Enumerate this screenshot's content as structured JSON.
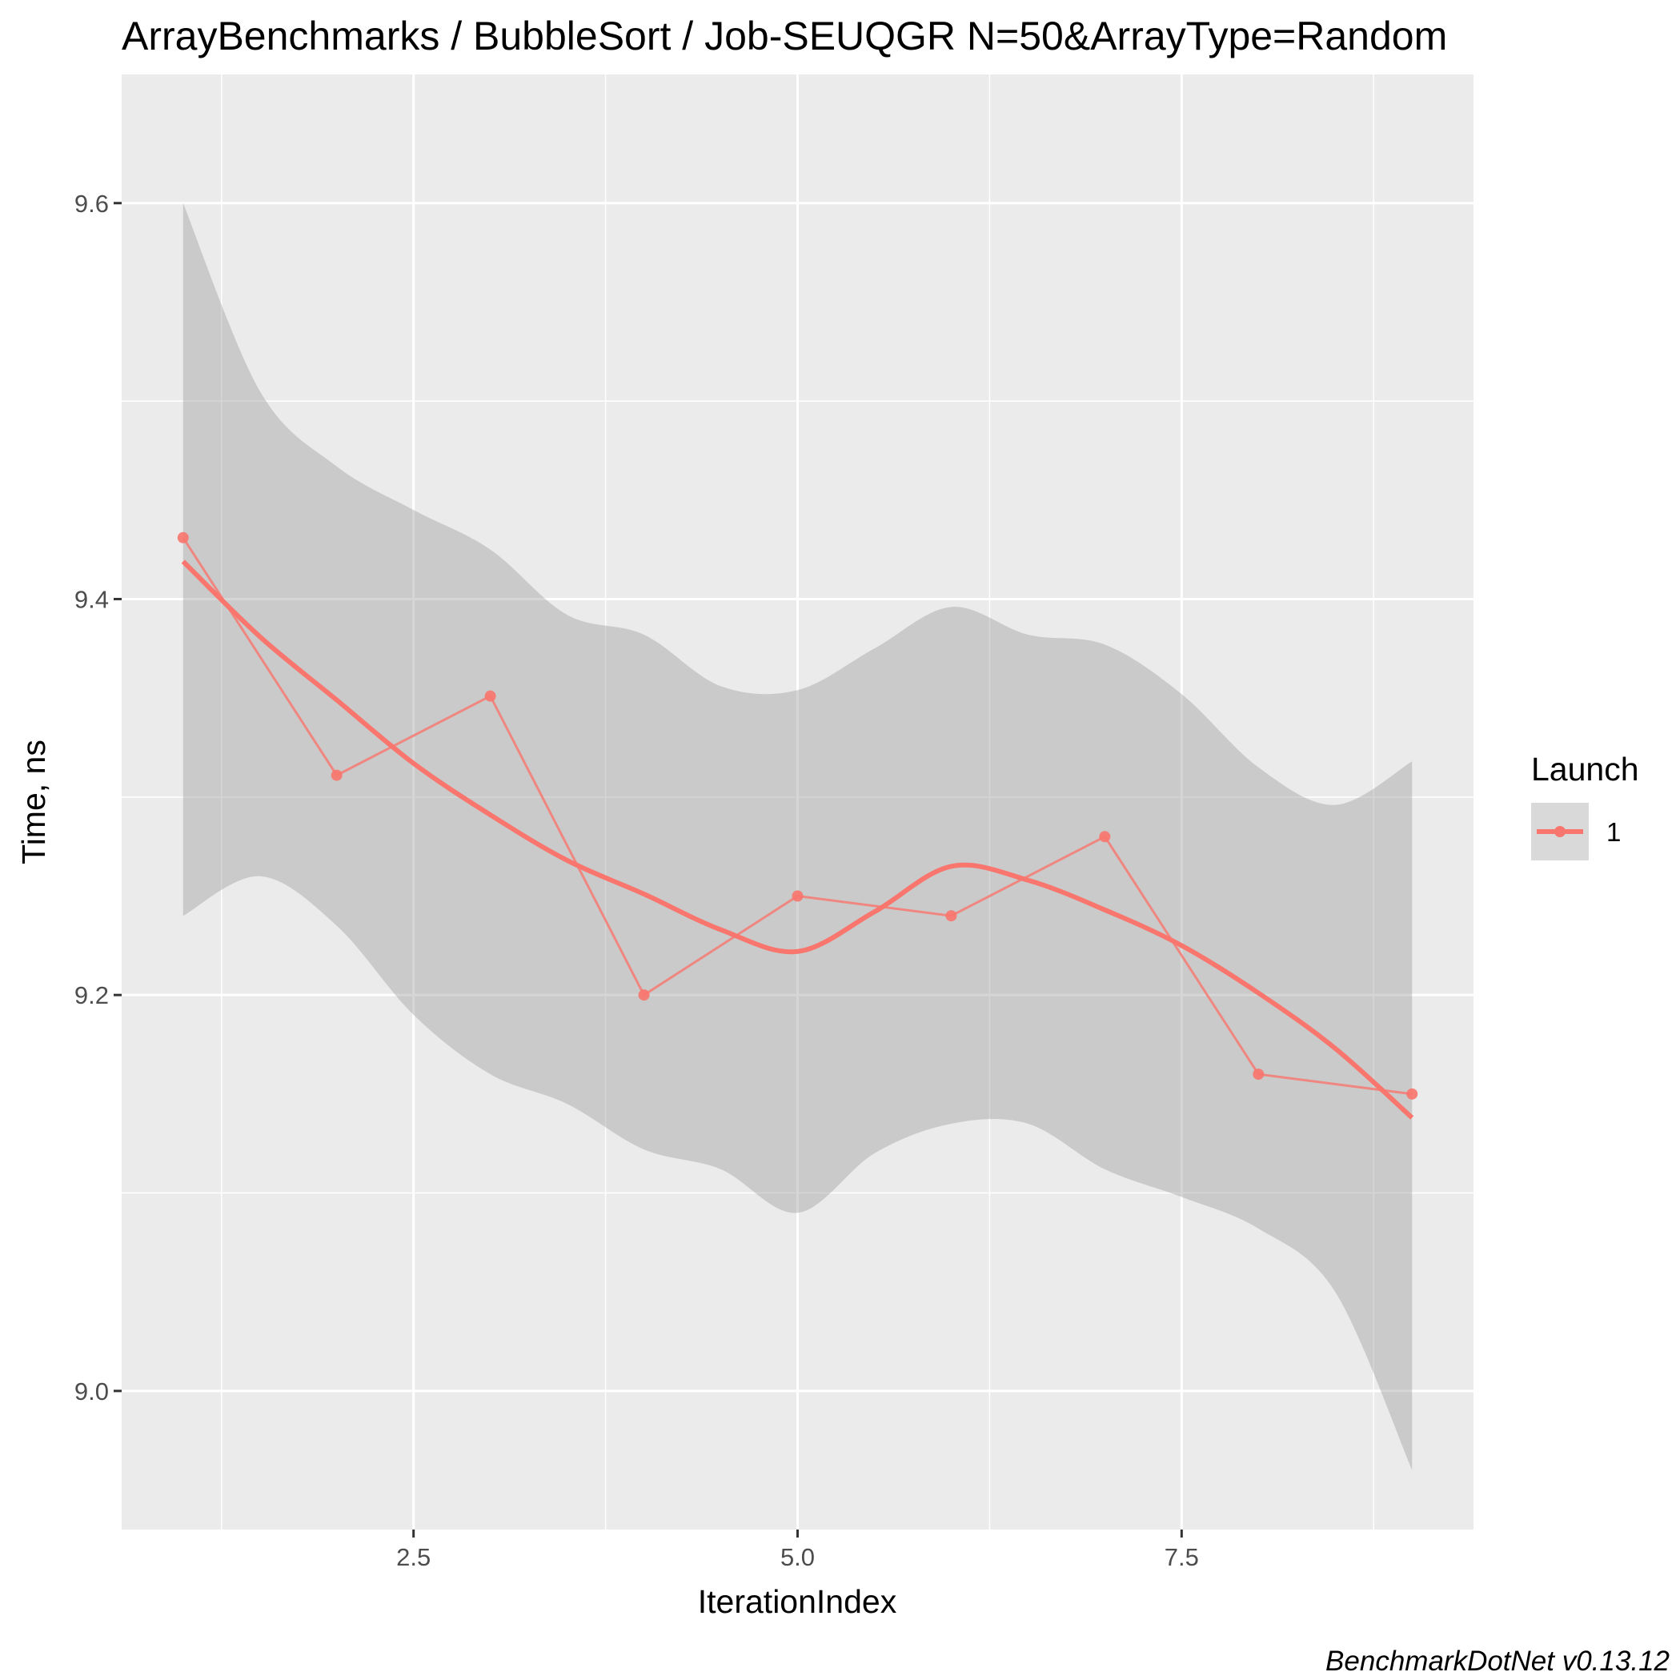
{
  "chart_data": {
    "type": "line",
    "title": "ArrayBenchmarks / BubbleSort / Job-SEUQGR N=50&ArrayType=Random",
    "xlabel": "IterationIndex",
    "ylabel": "Time, ns",
    "xlim": [
      0.6,
      9.4
    ],
    "ylim": [
      8.93,
      9.665
    ],
    "x_ticks": [
      2.5,
      5.0,
      7.5
    ],
    "x_tick_labels": [
      "2.5",
      "5.0",
      "7.5"
    ],
    "y_ticks": [
      9.0,
      9.2,
      9.4,
      9.6
    ],
    "y_tick_labels": [
      "9.0",
      "9.2",
      "9.4",
      "9.6"
    ],
    "grid": true,
    "legend": {
      "title": "Launch",
      "position": "right",
      "entries": [
        "1"
      ]
    },
    "series": [
      {
        "name": "1",
        "color": "#F8766D",
        "x": [
          1,
          2,
          3,
          4,
          5,
          6,
          7,
          8,
          9
        ],
        "values": [
          9.431,
          9.311,
          9.351,
          9.2,
          9.25,
          9.24,
          9.28,
          9.16,
          9.15
        ]
      }
    ],
    "smooth": {
      "color": "#F8766D",
      "band_color": "#999999",
      "x": [
        1,
        1.5,
        2,
        2.5,
        3,
        3.5,
        4,
        4.5,
        5,
        5.5,
        6,
        6.5,
        7,
        7.5,
        8,
        8.5,
        9
      ],
      "fit": [
        9.419,
        9.381,
        9.349,
        9.317,
        9.291,
        9.268,
        9.251,
        9.233,
        9.222,
        9.242,
        9.265,
        9.258,
        9.243,
        9.225,
        9.201,
        9.173,
        9.138
      ],
      "lower": [
        9.24,
        9.26,
        9.235,
        9.19,
        9.16,
        9.145,
        9.122,
        9.112,
        9.09,
        9.12,
        9.135,
        9.135,
        9.112,
        9.098,
        9.082,
        9.05,
        8.96
      ],
      "upper": [
        9.6,
        9.505,
        9.467,
        9.445,
        9.425,
        9.392,
        9.382,
        9.356,
        9.354,
        9.375,
        9.396,
        9.382,
        9.377,
        9.352,
        9.315,
        9.296,
        9.318
      ]
    }
  },
  "caption": "BenchmarkDotNet v0.13.12"
}
